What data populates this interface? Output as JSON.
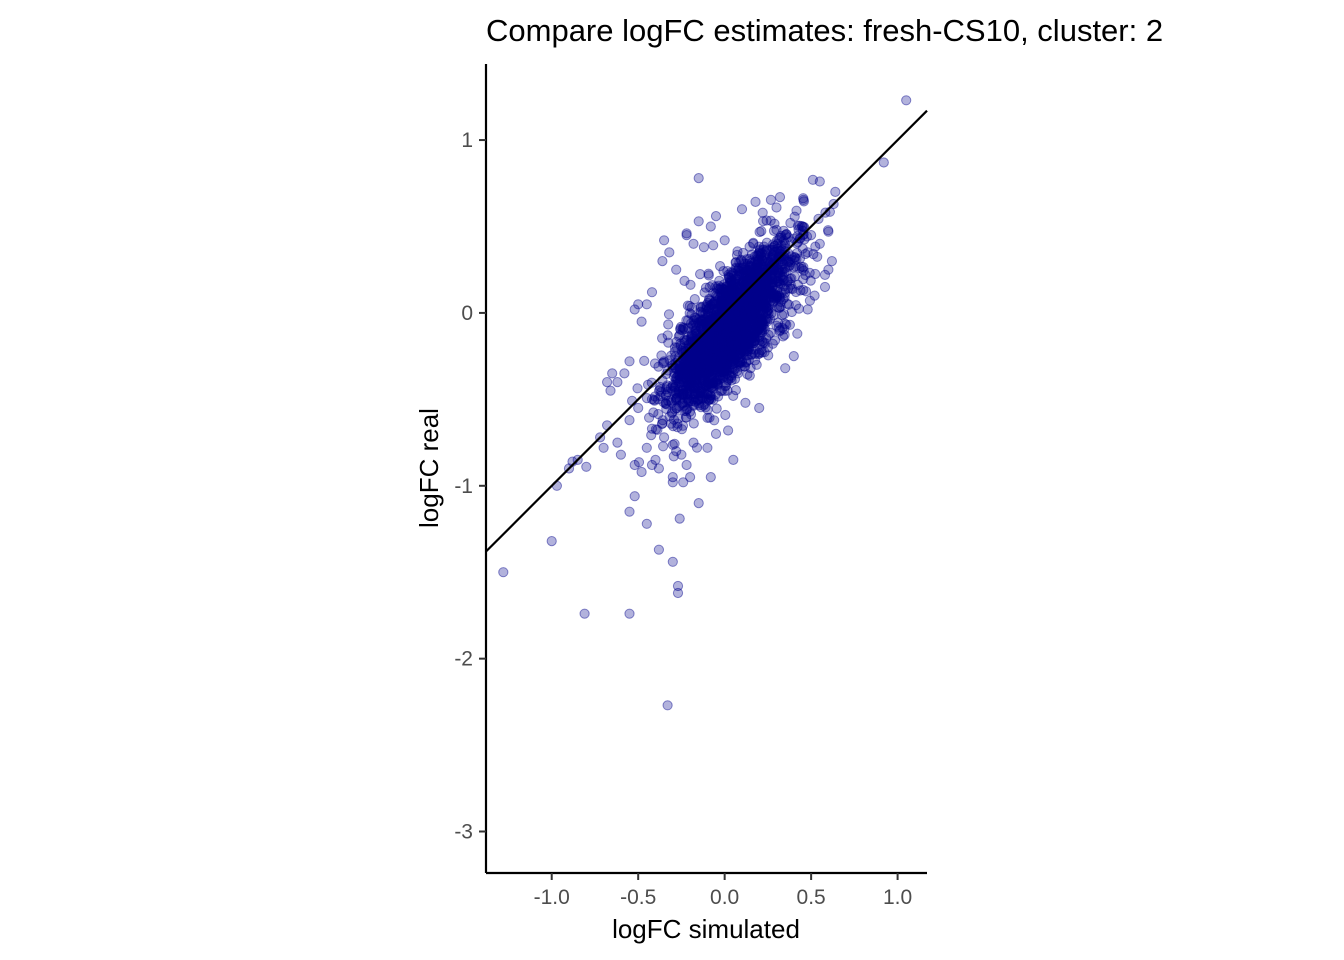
{
  "chart_data": {
    "type": "scatter",
    "title": "Compare logFC estimates: fresh-CS10, cluster: 2",
    "xlabel": "logFC simulated",
    "ylabel": "logFC real",
    "xlim": [
      -1.38,
      1.17
    ],
    "ylim": [
      -3.24,
      1.44
    ],
    "x_ticks": [
      {
        "value": -1.0,
        "label": "-1.0"
      },
      {
        "value": -0.5,
        "label": "-0.5"
      },
      {
        "value": 0.0,
        "label": "0.0"
      },
      {
        "value": 0.5,
        "label": "0.5"
      },
      {
        "value": 1.0,
        "label": "1.0"
      }
    ],
    "y_ticks": [
      {
        "value": 1,
        "label": "1"
      },
      {
        "value": 0,
        "label": "0"
      },
      {
        "value": -1,
        "label": "-1"
      },
      {
        "value": -2,
        "label": "-2"
      },
      {
        "value": -3,
        "label": "-3"
      }
    ],
    "grid": false,
    "legend": "none",
    "point_color": "#00008b",
    "point_alpha": 0.3,
    "reference_line": {
      "slope": 1,
      "intercept": 0,
      "color": "#000000"
    },
    "series": [
      {
        "x": [
          1.05,
          0.92,
          0.64,
          0.63,
          0.55,
          0.51,
          0.6,
          0.32,
          0.3,
          0.22,
          0.1,
          -0.15,
          -0.15,
          -0.05,
          -0.22,
          -0.35,
          -0.5,
          -0.52,
          -0.65,
          -0.68,
          -0.72,
          -0.68,
          -0.8,
          -0.85,
          -0.9,
          -0.88,
          -0.55,
          -0.52,
          -0.5,
          -0.42,
          -0.45,
          -0.38,
          -0.3,
          -0.28,
          -0.25,
          -0.35,
          -0.22,
          -0.18,
          0.02,
          0.05,
          -0.05,
          -0.1,
          0.12,
          0.2,
          0.35,
          0.42,
          0.48,
          0.52,
          0.58,
          0.62,
          0.55,
          0.5,
          0.45,
          0.38,
          0.3,
          -0.42,
          -0.45,
          -0.48,
          -0.36,
          -0.32,
          -0.28,
          -0.22,
          -0.18,
          -0.12,
          -0.08,
          0.0,
          -0.55,
          -0.58,
          -0.62,
          -0.66,
          -1.28,
          -1.0,
          -0.97,
          -0.81,
          -0.55,
          -0.33,
          -0.27,
          -0.27,
          -0.26,
          -0.3,
          -0.38,
          -0.55,
          -0.45,
          -0.52,
          -0.15,
          -0.24,
          -0.08,
          -0.6,
          -0.7,
          -0.62,
          -0.48,
          -0.4,
          -0.3,
          -0.2,
          0.15,
          0.25,
          0.4,
          0.58,
          0.6,
          0.48,
          0.35
        ],
        "y": [
          1.23,
          0.87,
          0.7,
          0.63,
          0.76,
          0.77,
          0.47,
          0.67,
          0.61,
          0.58,
          0.6,
          0.78,
          0.53,
          0.56,
          0.46,
          0.42,
          0.05,
          0.02,
          -0.35,
          -0.4,
          -0.72,
          -0.65,
          -0.89,
          -0.85,
          -0.9,
          -0.86,
          -0.62,
          -0.88,
          -0.55,
          -0.88,
          -0.78,
          -0.9,
          -0.95,
          -0.8,
          -0.82,
          -0.72,
          -0.88,
          -0.75,
          -0.68,
          -0.85,
          -0.7,
          -0.78,
          -0.52,
          -0.55,
          -0.32,
          -0.12,
          0.02,
          0.1,
          0.22,
          0.3,
          0.4,
          0.45,
          0.5,
          0.52,
          0.48,
          0.12,
          0.05,
          -0.05,
          0.3,
          0.35,
          0.25,
          0.45,
          0.4,
          0.38,
          0.5,
          0.42,
          -0.28,
          -0.35,
          -0.4,
          -0.45,
          -1.5,
          -1.32,
          -1.0,
          -1.74,
          -1.74,
          -2.27,
          -1.62,
          -1.58,
          -1.19,
          -1.44,
          -1.37,
          -1.15,
          -1.22,
          -1.06,
          -1.1,
          -0.98,
          -0.95,
          -0.82,
          -0.78,
          -0.75,
          -0.92,
          -0.85,
          -0.98,
          -0.95,
          -0.32,
          -0.2,
          -0.25,
          0.15,
          0.25,
          0.35,
          0.45
        ]
      }
    ]
  }
}
